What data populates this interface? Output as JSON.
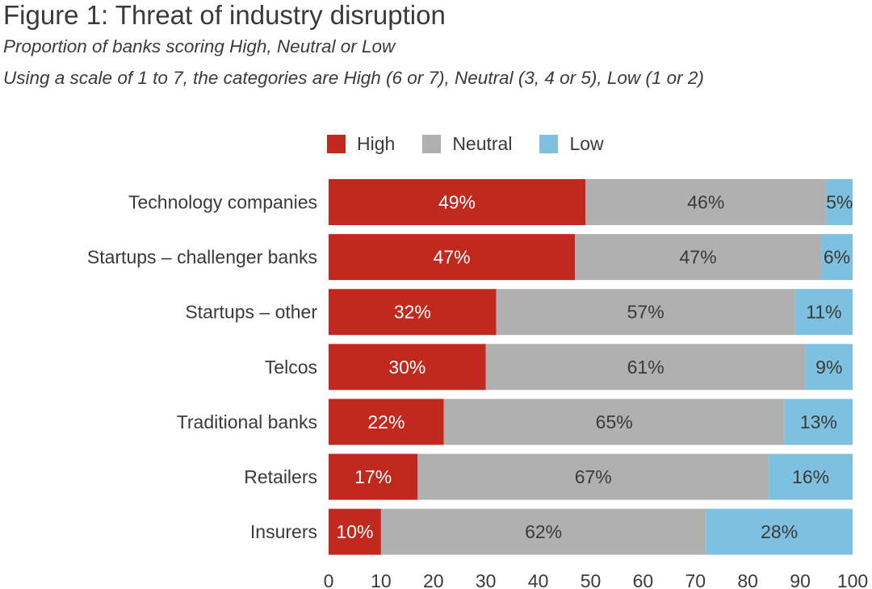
{
  "header": {
    "title": "Figure 1: Threat of industry disruption",
    "subtitle": "Proportion of banks scoring High, Neutral or Low",
    "note": "Using a scale of 1 to 7, the categories are High (6 or 7), Neutral (3, 4 or 5), Low (1 or 2)"
  },
  "legend": [
    {
      "label": "High",
      "color": "#c1291f"
    },
    {
      "label": "Neutral",
      "color": "#b0b0b0"
    },
    {
      "label": "Low",
      "color": "#7ec0df"
    }
  ],
  "chart_data": {
    "type": "bar",
    "orientation": "horizontal",
    "stacked": true,
    "categories": [
      "Technology companies",
      "Startups – challenger banks",
      "Startups – other",
      "Telcos",
      "Traditional banks",
      "Retailers",
      "Insurers"
    ],
    "series": [
      {
        "name": "High",
        "color": "#c1291f",
        "values": [
          49,
          47,
          32,
          30,
          22,
          17,
          10
        ],
        "labels": [
          "49%",
          "47%",
          "32%",
          "30%",
          "22%",
          "17%",
          "10%"
        ]
      },
      {
        "name": "Neutral",
        "color": "#b0b0b0",
        "values": [
          46,
          47,
          57,
          61,
          65,
          67,
          62
        ],
        "labels": [
          "46%",
          "47%",
          "57%",
          "61%",
          "65%",
          "67%",
          "62%"
        ]
      },
      {
        "name": "Low",
        "color": "#7ec0df",
        "values": [
          5,
          6,
          11,
          9,
          13,
          16,
          28
        ],
        "labels": [
          "5%",
          "6%",
          "11%",
          "9%",
          "13%",
          "16%",
          "28%"
        ]
      }
    ],
    "xlim": [
      0,
      100
    ],
    "xticks": [
      "0",
      "10",
      "20",
      "30",
      "40",
      "50",
      "60",
      "70",
      "80",
      "90",
      "100"
    ],
    "grid": false,
    "legend_position": "top"
  }
}
